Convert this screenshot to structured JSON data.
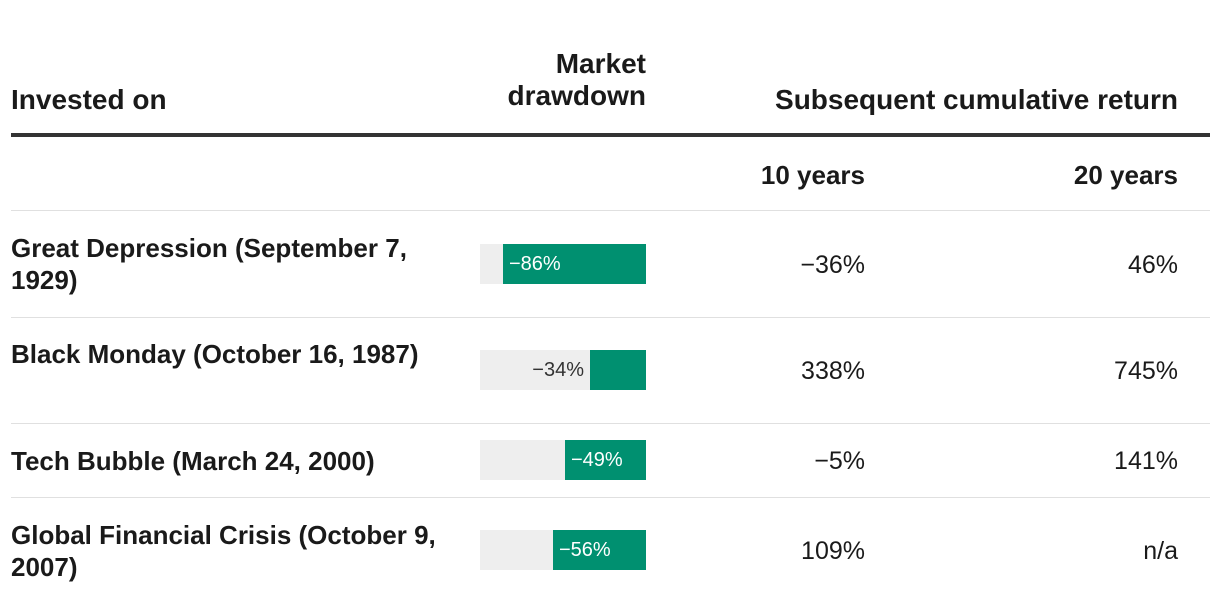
{
  "chart_data": {
    "type": "table",
    "headers": {
      "invested_on": "Invested on",
      "drawdown": "Market drawdown",
      "subsequent": "Subsequent cumulative return",
      "ten_years": "10 years",
      "twenty_years": "20 years"
    },
    "rows": [
      {
        "event": "Great Depression (September 7, 1929)",
        "drawdown": -86,
        "drawdown_label": "−86%",
        "ten_years": "−36%",
        "twenty_years": "46%"
      },
      {
        "event": "Black Monday (October 16, 1987)",
        "drawdown": -34,
        "drawdown_label": "−34%",
        "ten_years": "338%",
        "twenty_years": "745%"
      },
      {
        "event": "Tech Bubble (March 24, 2000)",
        "drawdown": -49,
        "drawdown_label": "−49%",
        "ten_years": "−5%",
        "twenty_years": "141%"
      },
      {
        "event": "Global Financial Crisis (October 9, 2007)",
        "drawdown": -56,
        "drawdown_label": "−56%",
        "ten_years": "109%",
        "twenty_years": "n/a"
      }
    ],
    "bar_color": "#009070",
    "track_color": "#eeeeee"
  }
}
